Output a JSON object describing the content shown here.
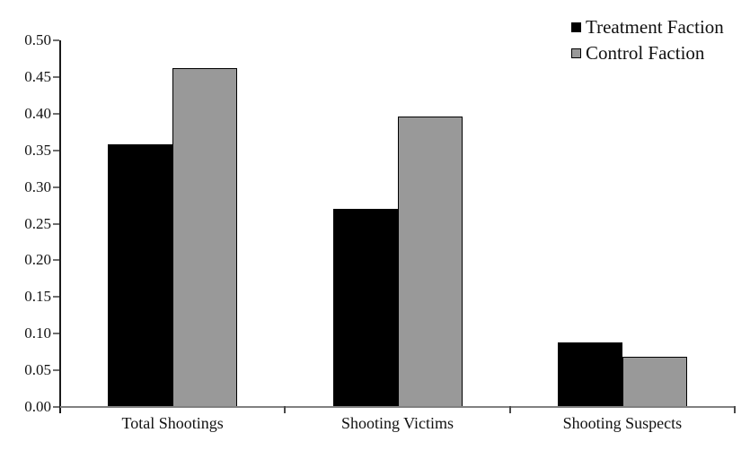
{
  "page": {
    "background": "#ffffff",
    "text_color": "#111111"
  },
  "chart_data": {
    "type": "bar",
    "title": "",
    "xlabel": "",
    "ylabel": "",
    "categories": [
      "Total Shootings",
      "Shooting Victims",
      "Shooting Suspects"
    ],
    "series": [
      {
        "name": "Treatment Faction",
        "color": "#000000",
        "values": [
          0.358,
          0.27,
          0.088
        ]
      },
      {
        "name": "Control Faction",
        "color": "#999999",
        "values": [
          0.462,
          0.396,
          0.068
        ]
      }
    ],
    "ylim": [
      0,
      0.5
    ],
    "ytick_step": 0.05,
    "ytick_labels": [
      "0.00",
      "0.05",
      "0.10",
      "0.15",
      "0.20",
      "0.25",
      "0.30",
      "0.35",
      "0.40",
      "0.45",
      "0.50"
    ],
    "grid": false,
    "legend_position": "top-right",
    "bar_border_color": "#000000",
    "xaxis_color": "#808080",
    "yaxis_color": "#1a1a1a"
  }
}
